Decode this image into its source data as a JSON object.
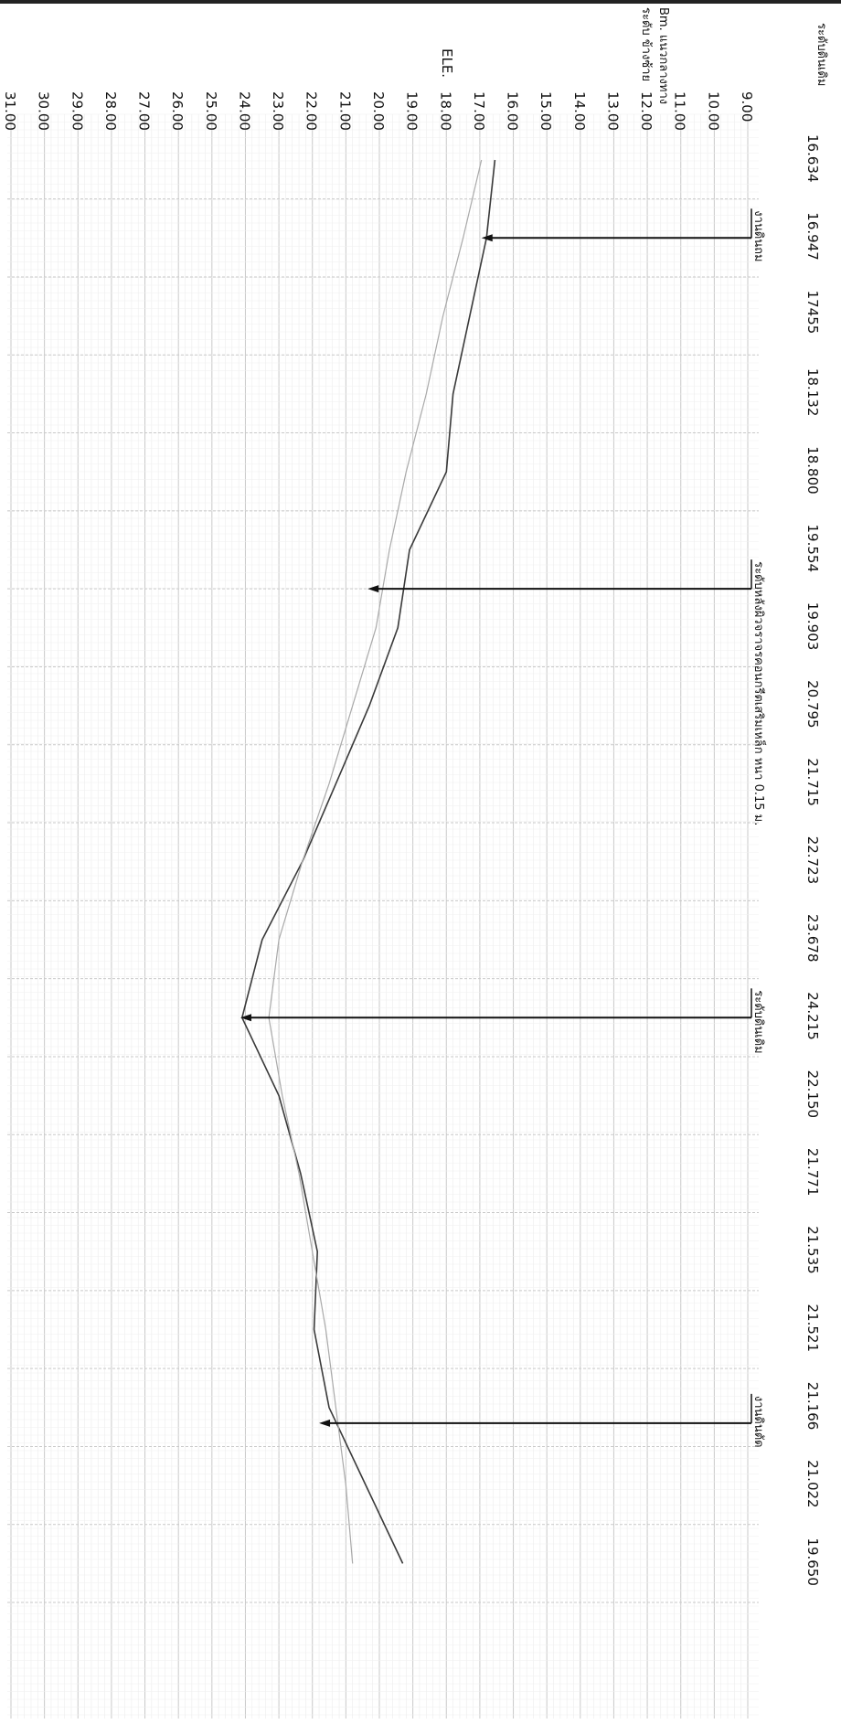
{
  "chart_data": {
    "type": "line",
    "orientation": "rotated-90-clockwise",
    "grid": true,
    "elevation_axis": {
      "label": "ELE.",
      "ticks": [
        "9.00",
        "10.00",
        "11.00",
        "12.00",
        "13.00",
        "14.00",
        "15.00",
        "16.00",
        "17.00",
        "18.00",
        "19.00",
        "20.00",
        "21.00",
        "22.00",
        "23.00",
        "24.00",
        "25.00",
        "26.00",
        "27.00",
        "28.00",
        "29.00",
        "30.00",
        "31.00"
      ],
      "range": [
        9,
        31
      ]
    },
    "header_labels": {
      "row1": "ระดับดินเดิม",
      "row2a": "Bm. แนวกลางทาง",
      "row2b": "ระดับ ข้างซ้าย"
    },
    "station_values": [
      "16.634",
      "16.947",
      "17455",
      "18.132",
      "18.800",
      "19.554",
      "19.903",
      "20.795",
      "21.715",
      "22.723",
      "23.678",
      "24.215",
      "22.150",
      "21.771",
      "21.535",
      "21.521",
      "21.166",
      "21.022",
      "19.650"
    ],
    "series": [
      {
        "role": "dark",
        "values": [
          16.55,
          16.8,
          17.3,
          17.8,
          18.0,
          19.1,
          19.45,
          20.3,
          21.3,
          22.3,
          23.5,
          24.1,
          23.0,
          22.35,
          21.85,
          21.95,
          21.5,
          20.4,
          19.3
        ]
      },
      {
        "role": "light",
        "values": [
          16.95,
          17.5,
          18.1,
          18.6,
          19.2,
          19.7,
          20.1,
          20.8,
          21.5,
          22.3,
          23.0,
          23.3,
          22.9,
          22.4,
          22.0,
          21.6,
          21.3,
          21.0,
          20.8
        ]
      }
    ],
    "annotations": [
      {
        "text": "งานดินถม",
        "station": 1,
        "elevation": 16.95
      },
      {
        "text": "ระดับหลังผิวจราจรคอนกรีตเสริมเหล็ก หนา 0.15 ม.",
        "station": 5.5,
        "elevation": 20.35
      },
      {
        "text": "ระดับดินเดิม",
        "station": 11,
        "elevation": 24.15
      },
      {
        "text": "งานดินตัด",
        "station": 16.2,
        "elevation": 21.8
      }
    ]
  }
}
